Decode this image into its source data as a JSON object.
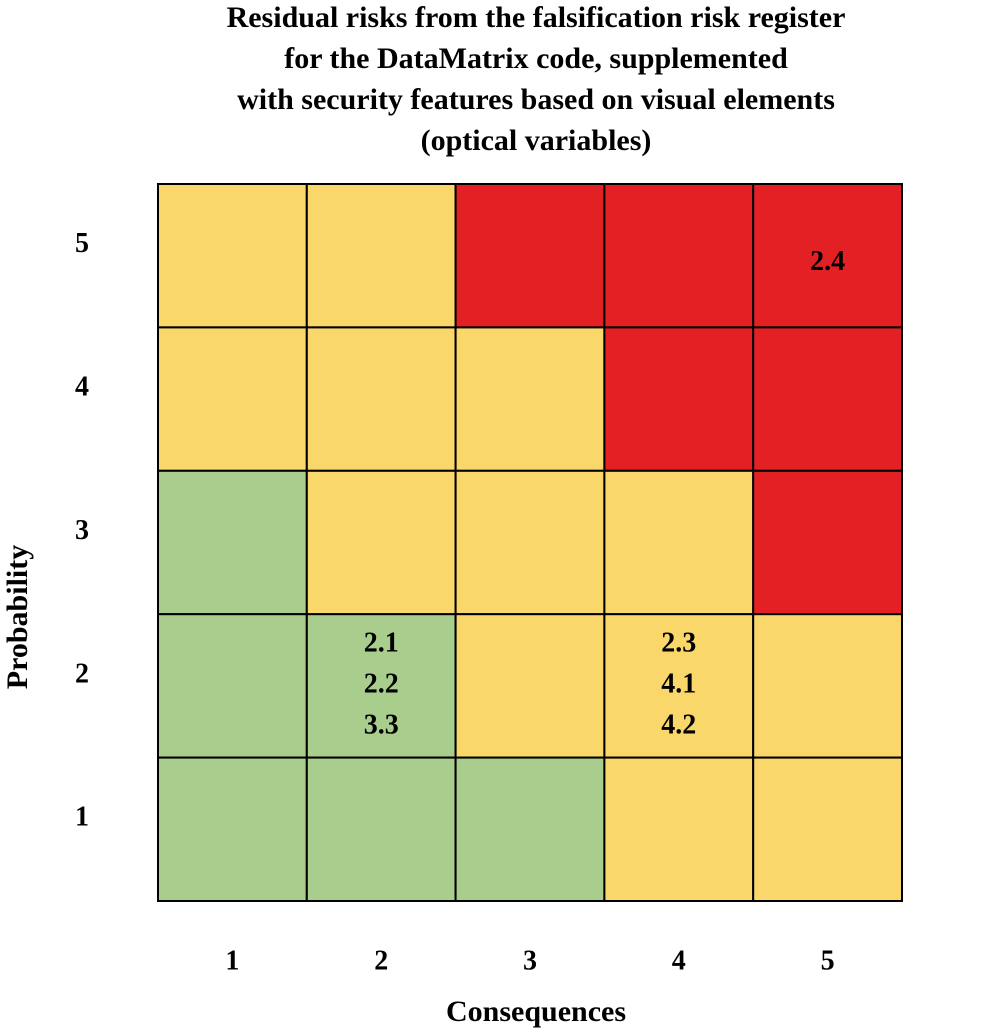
{
  "title": [
    "Residual risks from the falsification risk register",
    "for the DataMatrix code, supplemented",
    "with security features based on visual elements",
    "(optical variables)"
  ],
  "x_axis": {
    "label": "Consequences",
    "ticks": [
      "1",
      "2",
      "3",
      "4",
      "5"
    ]
  },
  "y_axis": {
    "label": "Probability",
    "ticks": [
      "5",
      "4",
      "3",
      "2",
      "1"
    ]
  },
  "rows": [
    [
      {
        "color": "#fad76b"
      },
      {
        "color": "#fad76b"
      },
      {
        "color": "#e32124"
      },
      {
        "color": "#e32124"
      },
      {
        "color": "#e32124",
        "risks": [
          "2.4"
        ],
        "text_color": "#ffffff"
      }
    ],
    [
      {
        "color": "#fad76b"
      },
      {
        "color": "#fad76b"
      },
      {
        "color": "#fad76b"
      },
      {
        "color": "#e32124"
      },
      {
        "color": "#e32124"
      }
    ],
    [
      {
        "color": "#a9cd8c"
      },
      {
        "color": "#fad76b"
      },
      {
        "color": "#fad76b"
      },
      {
        "color": "#fad76b"
      },
      {
        "color": "#e32124"
      }
    ],
    [
      {
        "color": "#a9cd8c"
      },
      {
        "color": "#a9cd8c",
        "risks": [
          "2.1",
          "2.2",
          "3.3"
        ]
      },
      {
        "color": "#fad76b"
      },
      {
        "color": "#fad76b",
        "risks": [
          "2.3",
          "4.1",
          "4.2"
        ]
      },
      {
        "color": "#fad76b"
      }
    ],
    [
      {
        "color": "#a9cd8c"
      },
      {
        "color": "#a9cd8c"
      },
      {
        "color": "#a9cd8c"
      },
      {
        "color": "#fad76b"
      },
      {
        "color": "#fad76b"
      }
    ]
  ]
}
